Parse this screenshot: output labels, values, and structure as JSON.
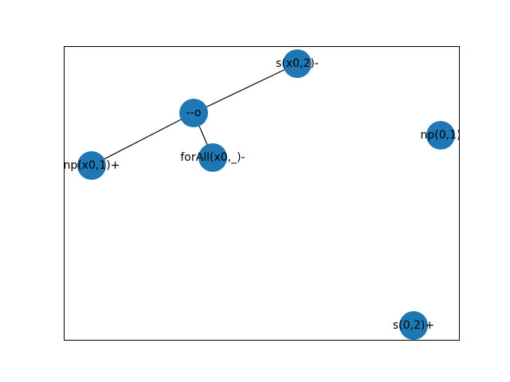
{
  "graph": {
    "nodes": [
      {
        "id": "s_x0_2_minus",
        "label": "s(x0,2)-"
      },
      {
        "id": "dash_o",
        "label": "--o"
      },
      {
        "id": "forall",
        "label": "forAll(x0,_)-"
      },
      {
        "id": "np_x0_1_plus",
        "label": "np(x0,1)+"
      },
      {
        "id": "np_0_1",
        "label": "np(0,1)"
      },
      {
        "id": "s_0_2_plus",
        "label": "s(0,2)+"
      }
    ],
    "edges": [
      {
        "source": "dash_o",
        "target": "s_x0_2_minus"
      },
      {
        "source": "dash_o",
        "target": "forall"
      },
      {
        "source": "dash_o",
        "target": "np_x0_1_plus"
      }
    ],
    "colors": {
      "node_fill": "#1f77b4",
      "edge": "#000000",
      "frame": "#000000",
      "text": "#000000"
    }
  }
}
